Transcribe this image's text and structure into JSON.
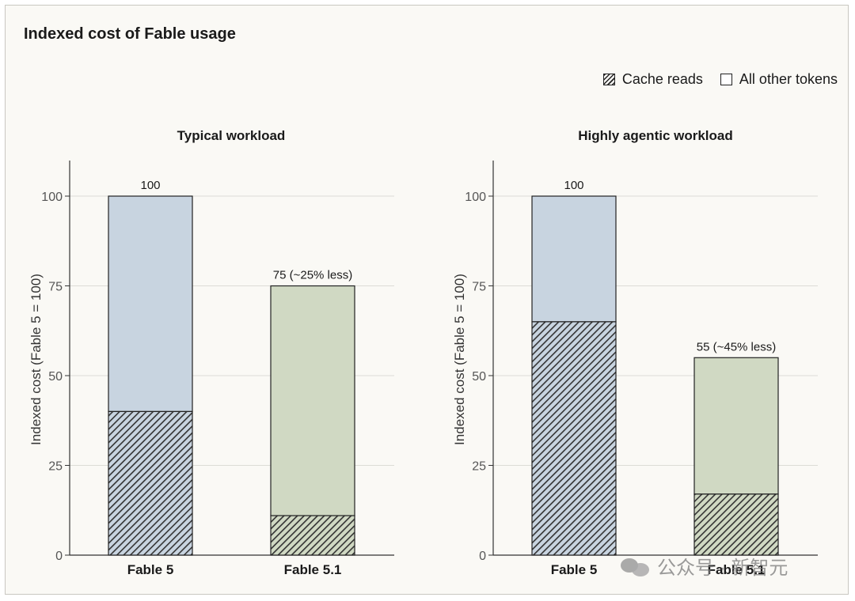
{
  "title": "Indexed cost of Fable usage",
  "legend": {
    "cache_reads": "Cache reads",
    "other_tokens": "All other tokens"
  },
  "watermark": "公众号 · 新智元",
  "colors": {
    "fable5": "#c8d4e0",
    "fable51": "#d0d9c3",
    "outline": "#222222",
    "grid": "#dcdcd6"
  },
  "chart_data": [
    {
      "type": "bar",
      "stacked": true,
      "title": "Typical workload",
      "ylabel": "Indexed cost (Fable 5 = 100)",
      "ylim": [
        0,
        110
      ],
      "yticks": [
        0,
        25,
        50,
        75,
        100
      ],
      "categories": [
        "Fable 5",
        "Fable 5.1"
      ],
      "series": [
        {
          "name": "Cache reads",
          "values": [
            40,
            11
          ]
        },
        {
          "name": "All other tokens",
          "values": [
            60,
            64
          ]
        }
      ],
      "totals": [
        100,
        75
      ],
      "data_labels": [
        "100",
        "75 (~25% less)"
      ]
    },
    {
      "type": "bar",
      "stacked": true,
      "title": "Highly agentic workload",
      "ylabel": "Indexed cost (Fable 5 = 100)",
      "ylim": [
        0,
        110
      ],
      "yticks": [
        0,
        25,
        50,
        75,
        100
      ],
      "categories": [
        "Fable 5",
        "Fable 5.1"
      ],
      "series": [
        {
          "name": "Cache reads",
          "values": [
            65,
            17
          ]
        },
        {
          "name": "All other tokens",
          "values": [
            35,
            38
          ]
        }
      ],
      "totals": [
        100,
        55
      ],
      "data_labels": [
        "100",
        "55 (~45% less)"
      ]
    }
  ]
}
